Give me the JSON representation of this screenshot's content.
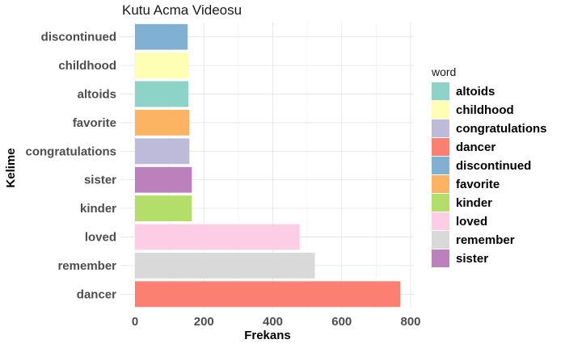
{
  "chart_data": {
    "type": "bar",
    "orientation": "horizontal",
    "title": "Kutu Acma Videosu",
    "xlabel": "Frekans",
    "ylabel": "Kelime",
    "xlim": [
      0,
      800
    ],
    "xticks": [
      0,
      200,
      400,
      600,
      800
    ],
    "grid": true,
    "categories": [
      "discontinued",
      "childhood",
      "altoids",
      "favorite",
      "congratulations",
      "sister",
      "kinder",
      "loved",
      "remember",
      "dancer"
    ],
    "values": [
      153,
      155,
      155,
      158,
      158,
      165,
      165,
      478,
      522,
      770
    ],
    "bar_colors": {
      "altoids": "#8DD3C7",
      "childhood": "#FFFFB3",
      "congratulations": "#BEBADA",
      "dancer": "#FB8072",
      "discontinued": "#80B1D3",
      "favorite": "#FDB462",
      "kinder": "#B3DE69",
      "loved": "#FCCDE5",
      "remember": "#D9D9D9",
      "sister": "#BC80BD"
    },
    "legend": {
      "title": "word",
      "position": "right",
      "entries": [
        "altoids",
        "childhood",
        "congratulations",
        "dancer",
        "discontinued",
        "favorite",
        "kinder",
        "loved",
        "remember",
        "sister"
      ]
    }
  }
}
